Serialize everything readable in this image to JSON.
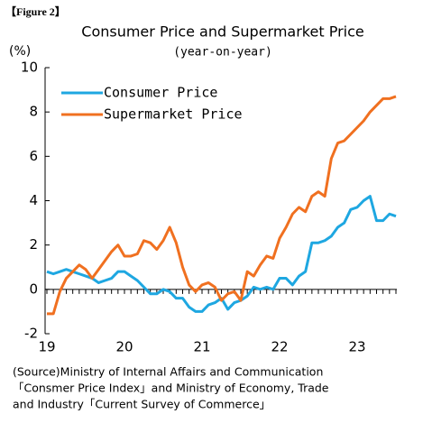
{
  "figure_label": "【Figure 2】",
  "chart_data": {
    "type": "line",
    "title": "Consumer Price and Supermarket Price",
    "subtitle": "(year-on-year)",
    "y_label": "(%)",
    "categories": [
      "19",
      null,
      null,
      null,
      null,
      null,
      null,
      null,
      null,
      null,
      null,
      null,
      "20",
      null,
      null,
      null,
      null,
      null,
      null,
      null,
      null,
      null,
      null,
      null,
      "21",
      null,
      null,
      null,
      null,
      null,
      null,
      null,
      null,
      null,
      null,
      null,
      "22",
      null,
      null,
      null,
      null,
      null,
      null,
      null,
      null,
      null,
      null,
      null,
      "23",
      null,
      null,
      null,
      null,
      null,
      null
    ],
    "series": [
      {
        "name": "Consumer Price",
        "color": "#1ea7e1",
        "values": [
          0.8,
          0.7,
          0.8,
          0.9,
          0.8,
          0.7,
          0.6,
          0.5,
          0.3,
          0.4,
          0.5,
          0.8,
          0.8,
          0.6,
          0.4,
          0.1,
          -0.2,
          -0.2,
          0.0,
          -0.1,
          -0.4,
          -0.4,
          -0.8,
          -1.0,
          -1.0,
          -0.7,
          -0.6,
          -0.4,
          -0.9,
          -0.6,
          -0.5,
          -0.3,
          0.1,
          0.0,
          0.1,
          0.0,
          0.5,
          0.5,
          0.2,
          0.6,
          0.8,
          2.1,
          2.1,
          2.2,
          2.4,
          2.8,
          3.0,
          3.6,
          3.7,
          4.0,
          4.2,
          3.1,
          3.1,
          3.4,
          3.3
        ]
      },
      {
        "name": "Supermarket Price",
        "color": "#f07020",
        "values": [
          -1.1,
          -1.1,
          -0.1,
          0.5,
          0.8,
          1.1,
          0.9,
          0.5,
          0.9,
          1.3,
          1.7,
          2.0,
          1.5,
          1.5,
          1.6,
          2.2,
          2.1,
          1.8,
          2.2,
          2.8,
          2.1,
          1.0,
          0.2,
          -0.1,
          0.2,
          0.3,
          0.1,
          -0.5,
          -0.2,
          -0.1,
          -0.5,
          0.8,
          0.6,
          1.1,
          1.5,
          1.4,
          2.3,
          2.8,
          3.4,
          3.7,
          3.5,
          4.2,
          4.4,
          4.2,
          5.9,
          6.6,
          6.7,
          7.0,
          7.3,
          7.6,
          8.0,
          8.3,
          8.6,
          8.6,
          8.7
        ]
      }
    ],
    "ylim": [
      -2,
      10
    ],
    "yticks": [
      -2,
      0,
      2,
      4,
      6,
      8,
      10
    ],
    "legend": "top-left",
    "source": [
      "(Source)Ministry of  Internal Affairs and Communication",
      "「Consmer Price Index」and Ministry of Economy, Trade",
      "and Industry「Current Survey of Commerce」"
    ]
  }
}
